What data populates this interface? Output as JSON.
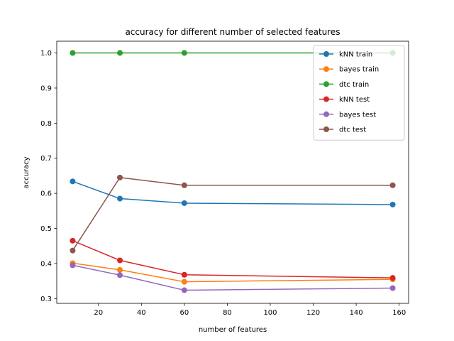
{
  "chart_data": {
    "type": "line",
    "title": "accuracy for different number of selected features",
    "xlabel": "number of features",
    "ylabel": "accuracy",
    "xlim": [
      0.6,
      164.4
    ],
    "ylim": [
      0.2865,
      1.0335
    ],
    "xticks": [
      20,
      40,
      60,
      80,
      100,
      120,
      140,
      160
    ],
    "yticks": [
      0.3,
      0.4,
      0.5,
      0.6,
      0.7,
      0.8,
      0.9,
      1.0
    ],
    "grid": false,
    "legend_position": "top-right",
    "x": [
      8,
      30,
      60,
      157
    ],
    "series": [
      {
        "name": "kNN train",
        "color": "#1f77b4",
        "values": [
          0.634,
          0.585,
          0.572,
          0.568
        ]
      },
      {
        "name": "bayes train",
        "color": "#ff7f0e",
        "values": [
          0.401,
          0.382,
          0.348,
          0.355
        ]
      },
      {
        "name": "dtc train",
        "color": "#2ca02c",
        "values": [
          1.0,
          1.0,
          1.0,
          1.0
        ]
      },
      {
        "name": "kNN test",
        "color": "#d62728",
        "values": [
          0.465,
          0.409,
          0.368,
          0.359
        ]
      },
      {
        "name": "bayes test",
        "color": "#9467bd",
        "values": [
          0.395,
          0.367,
          0.324,
          0.33
        ]
      },
      {
        "name": "dtc test",
        "color": "#8c564b",
        "values": [
          0.437,
          0.645,
          0.623,
          0.623
        ]
      }
    ]
  }
}
